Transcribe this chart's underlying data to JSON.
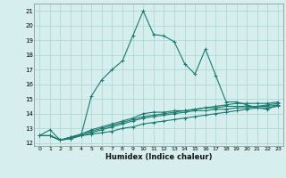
{
  "xlabel": "Humidex (Indice chaleur)",
  "bg_color": "#d6eeee",
  "line_color": "#1a7a6e",
  "grid_color": "#b0d8d8",
  "xlim": [
    -0.5,
    23.5
  ],
  "ylim": [
    11.8,
    21.5
  ],
  "xticks": [
    0,
    1,
    2,
    3,
    4,
    5,
    6,
    7,
    8,
    9,
    10,
    11,
    12,
    13,
    14,
    15,
    16,
    17,
    18,
    19,
    20,
    21,
    22,
    23
  ],
  "yticks": [
    12,
    13,
    14,
    15,
    16,
    17,
    18,
    19,
    20,
    21
  ],
  "lines": [
    {
      "x": [
        0,
        1,
        2,
        3,
        4,
        5,
        6,
        7,
        8,
        9,
        10,
        11,
        12,
        13,
        14,
        15,
        16,
        17,
        18,
        19,
        20,
        21,
        22,
        23
      ],
      "y": [
        12.5,
        12.9,
        12.2,
        12.4,
        12.5,
        15.2,
        16.3,
        17.0,
        17.6,
        19.3,
        21.0,
        19.4,
        19.3,
        18.9,
        17.4,
        16.7,
        18.4,
        16.6,
        14.8,
        14.8,
        14.6,
        14.4,
        14.3,
        14.6
      ]
    },
    {
      "x": [
        0,
        1,
        2,
        3,
        4,
        5,
        6,
        7,
        8,
        9,
        10,
        11,
        12,
        13,
        14,
        15,
        16,
        17,
        18,
        19,
        20,
        21,
        22,
        23
      ],
      "y": [
        12.5,
        12.5,
        12.2,
        12.3,
        12.5,
        12.6,
        12.7,
        12.8,
        13.0,
        13.1,
        13.3,
        13.4,
        13.5,
        13.6,
        13.7,
        13.8,
        13.9,
        14.0,
        14.1,
        14.2,
        14.3,
        14.4,
        14.4,
        14.5
      ]
    },
    {
      "x": [
        0,
        1,
        2,
        3,
        4,
        5,
        6,
        7,
        8,
        9,
        10,
        11,
        12,
        13,
        14,
        15,
        16,
        17,
        18,
        19,
        20,
        21,
        22,
        23
      ],
      "y": [
        12.5,
        12.5,
        12.2,
        12.3,
        12.5,
        12.7,
        12.9,
        13.1,
        13.3,
        13.5,
        13.7,
        13.8,
        13.9,
        14.0,
        14.1,
        14.2,
        14.2,
        14.3,
        14.3,
        14.4,
        14.4,
        14.5,
        14.5,
        14.6
      ]
    },
    {
      "x": [
        0,
        1,
        2,
        3,
        4,
        5,
        6,
        7,
        8,
        9,
        10,
        11,
        12,
        13,
        14,
        15,
        16,
        17,
        18,
        19,
        20,
        21,
        22,
        23
      ],
      "y": [
        12.5,
        12.5,
        12.2,
        12.4,
        12.6,
        12.8,
        13.0,
        13.2,
        13.4,
        13.6,
        13.8,
        13.9,
        14.0,
        14.1,
        14.2,
        14.3,
        14.4,
        14.4,
        14.5,
        14.5,
        14.5,
        14.5,
        14.6,
        14.7
      ]
    },
    {
      "x": [
        0,
        1,
        2,
        3,
        4,
        5,
        6,
        7,
        8,
        9,
        10,
        11,
        12,
        13,
        14,
        15,
        16,
        17,
        18,
        19,
        20,
        21,
        22,
        23
      ],
      "y": [
        12.5,
        12.5,
        12.2,
        12.4,
        12.6,
        12.9,
        13.1,
        13.3,
        13.5,
        13.7,
        14.0,
        14.1,
        14.1,
        14.2,
        14.2,
        14.3,
        14.4,
        14.5,
        14.6,
        14.7,
        14.7,
        14.7,
        14.7,
        14.8
      ]
    }
  ]
}
